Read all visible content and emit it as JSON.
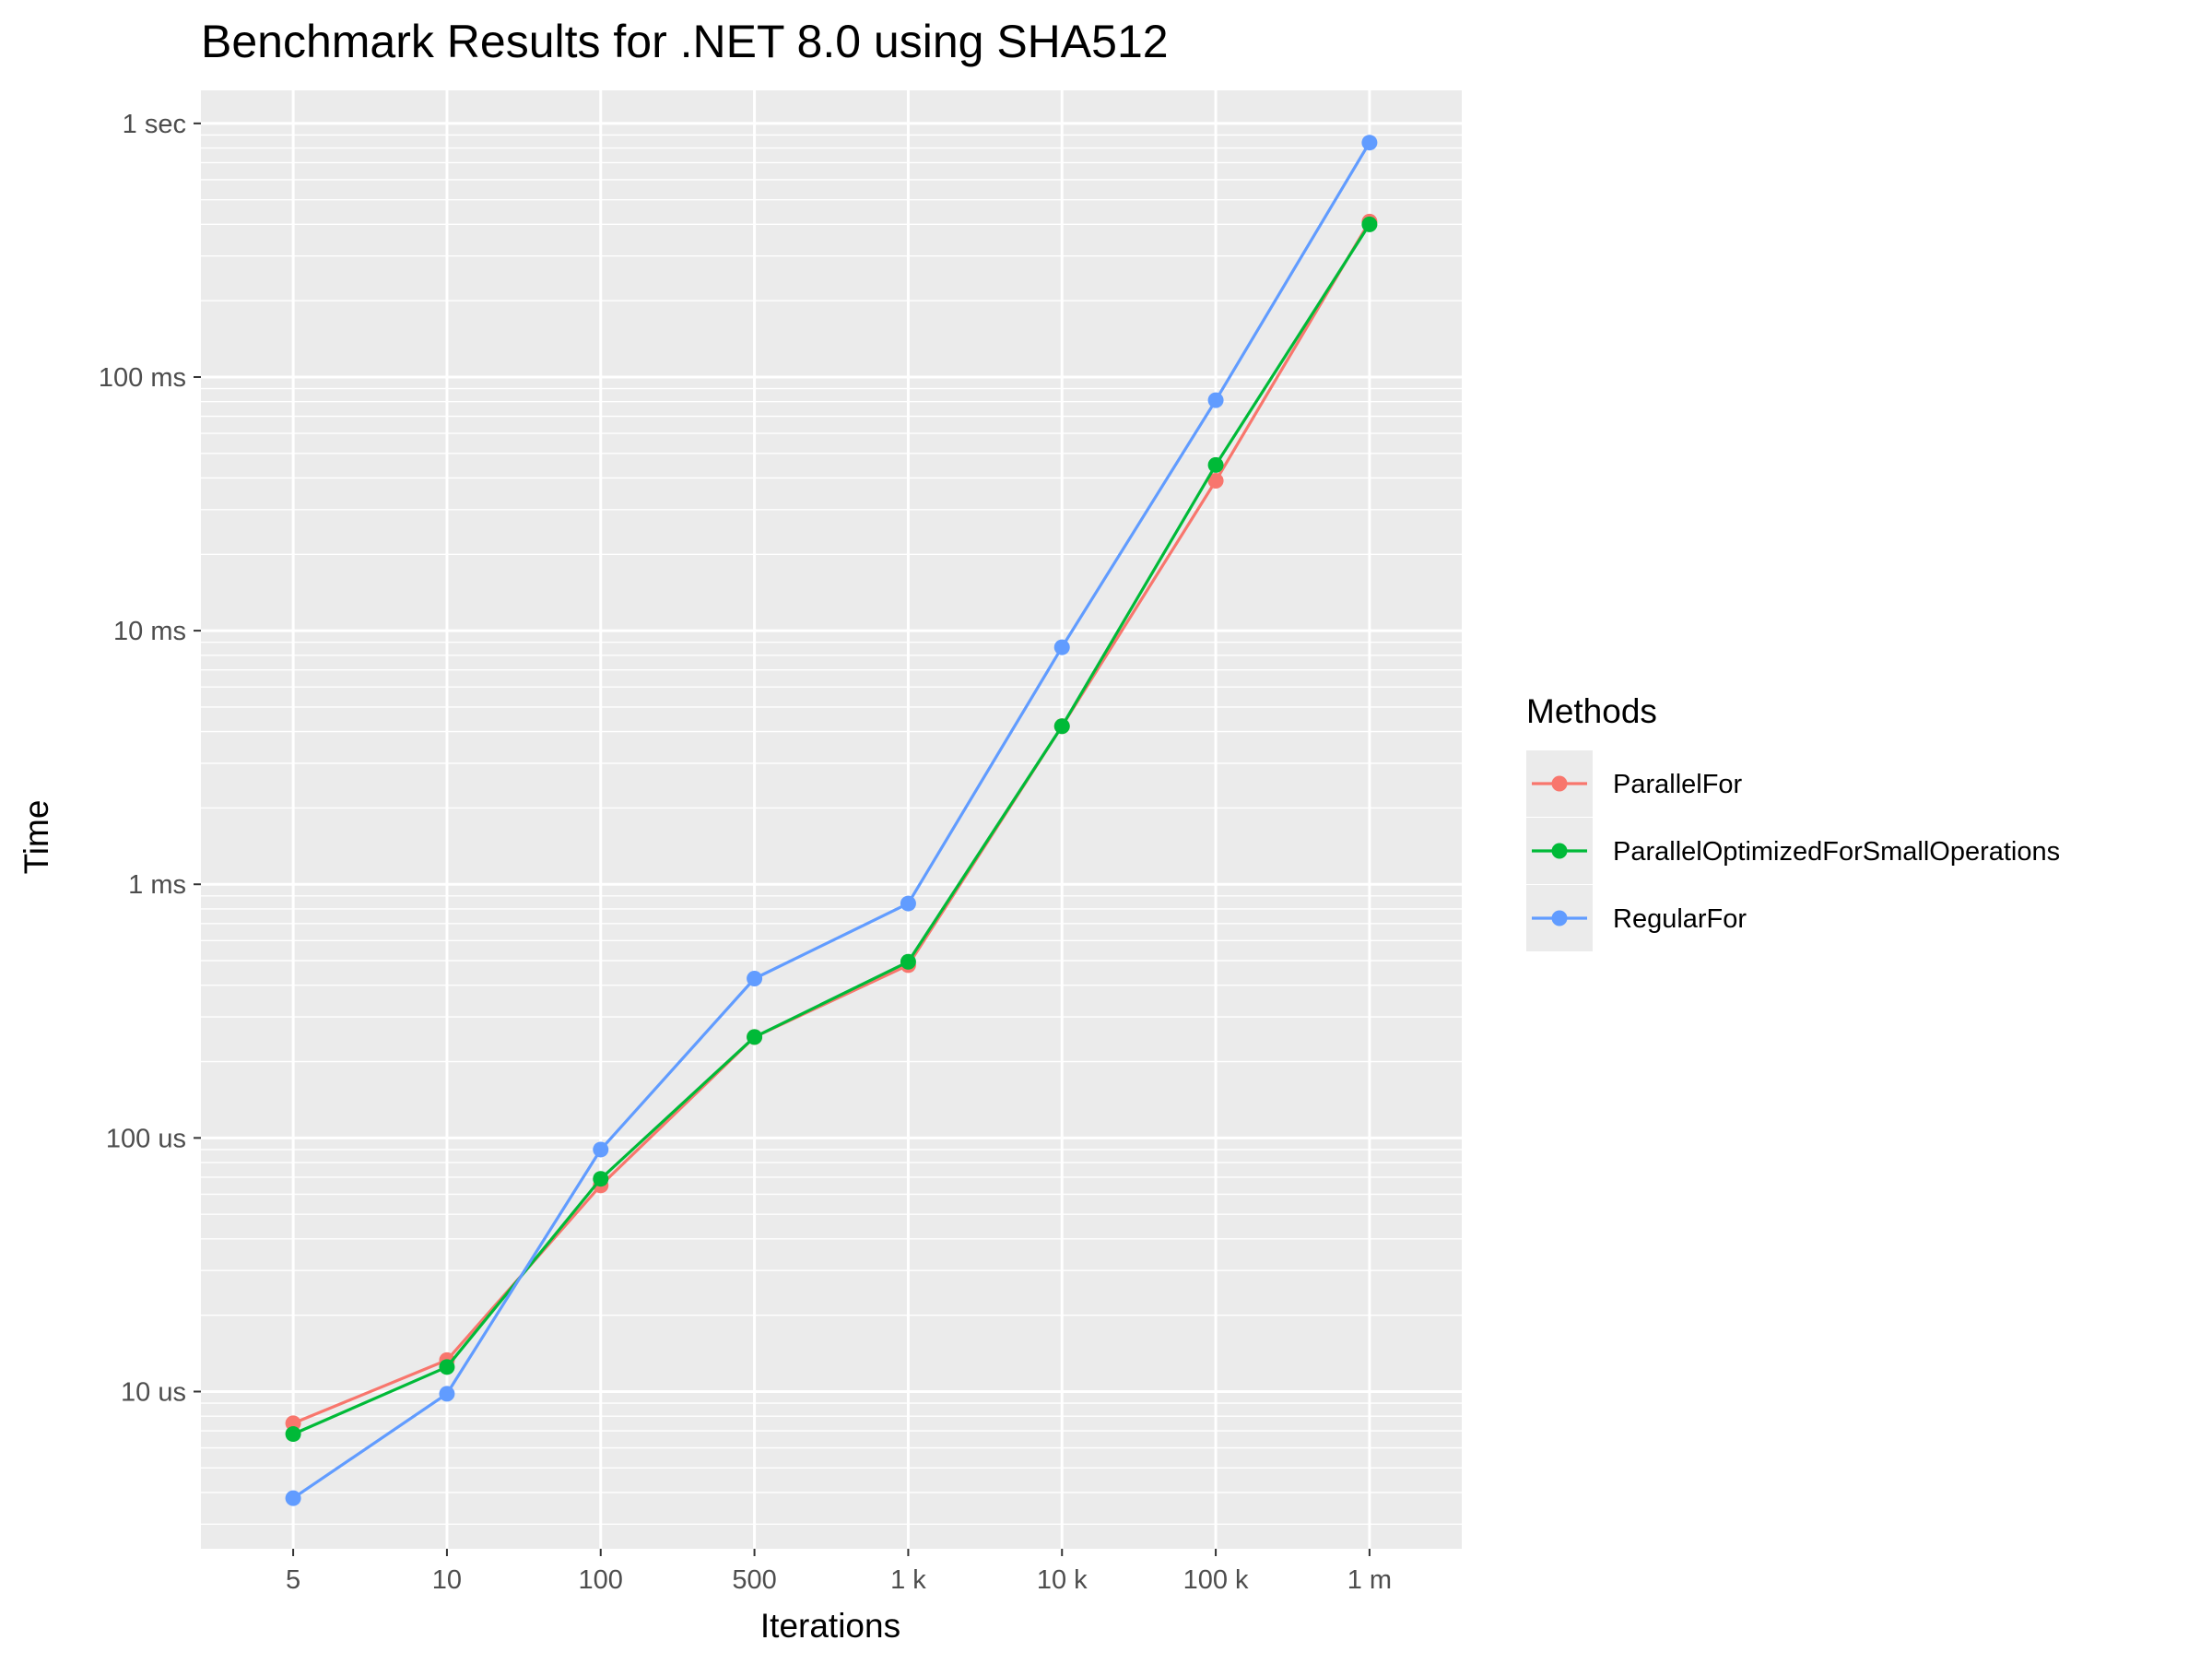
{
  "chart_data": {
    "type": "line",
    "title": "Benchmark Results for  .NET 8.0  using SHA512",
    "xlabel": "Iterations",
    "ylabel": "Time",
    "y_scale": "log10",
    "y_unit": "seconds",
    "ylim": [
      2.4e-06,
      1.35
    ],
    "categories": [
      "5",
      "10",
      "100",
      "500",
      "1 k",
      "10 k",
      "100 k",
      "1 m"
    ],
    "y_ticks": [
      {
        "value": 1e-05,
        "label": "10 us"
      },
      {
        "value": 0.0001,
        "label": "100 us"
      },
      {
        "value": 0.001,
        "label": "1 ms"
      },
      {
        "value": 0.01,
        "label": "10 ms"
      },
      {
        "value": 0.1,
        "label": "100 ms"
      },
      {
        "value": 1,
        "label": "1 sec"
      }
    ],
    "grid": true,
    "panel_background": "#ebebeb",
    "legend": {
      "title": "Methods",
      "position": "right"
    },
    "series": [
      {
        "name": "ParallelFor",
        "color": "#F8766D",
        "values": [
          7.5e-06,
          1.33e-05,
          6.5e-05,
          0.00025,
          0.00048,
          0.0042,
          0.039,
          0.41
        ]
      },
      {
        "name": "ParallelOptimizedForSmallOperations",
        "color": "#00BA38",
        "values": [
          6.8e-06,
          1.25e-05,
          6.9e-05,
          0.00025,
          0.000495,
          0.0042,
          0.045,
          0.4
        ]
      },
      {
        "name": "RegularFor",
        "color": "#619CFF",
        "values": [
          3.8e-06,
          9.8e-06,
          9e-05,
          0.000425,
          0.00084,
          0.0086,
          0.081,
          0.84
        ]
      }
    ]
  }
}
